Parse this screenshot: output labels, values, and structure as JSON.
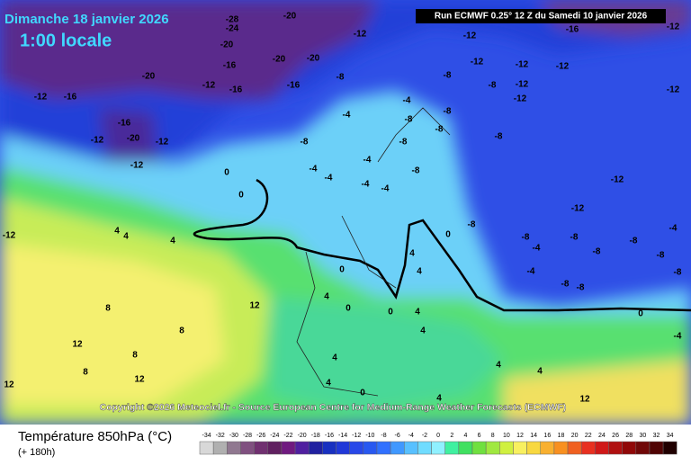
{
  "header": {
    "title": "Dimanche 18 janvier 2026",
    "time": "1:00 locale",
    "run": "Run ECMWF 0.25° 12 Z du Samedi 10 janvier 2026"
  },
  "map": {
    "labels": [
      -12,
      -12,
      -16,
      -12,
      -28,
      -24,
      -20,
      -16,
      -20,
      -20,
      -20,
      -16,
      -16,
      -12,
      -20,
      -12,
      -16,
      -16,
      -20,
      -12,
      -12,
      -12,
      -8,
      -12,
      -12,
      -12,
      -8,
      -8,
      -12,
      -12,
      -4,
      -8,
      -8,
      -4,
      -8,
      -4,
      -4,
      -4,
      -4,
      -4,
      -8,
      -8,
      -8,
      -8,
      -12,
      -12,
      -8,
      -8,
      -8,
      0,
      0,
      4,
      4,
      4,
      -12,
      0,
      4,
      4,
      0,
      -4,
      -4,
      -8,
      -8,
      -8,
      -8,
      -8,
      -4,
      -8,
      4,
      0,
      0,
      4,
      8,
      12,
      8,
      12,
      8,
      12,
      8,
      12,
      4,
      4,
      4,
      4,
      0,
      4,
      4,
      -4,
      0,
      12,
      -12
    ]
  },
  "copyright": "Copyright ©2026 Meteociel.fr - Source European Centre for Medium-Range Weather Forecasts (ECMWF)",
  "footer": {
    "title": "Température 850hPa (°C)",
    "lead": "(+ 180h)"
  },
  "legend": {
    "values": [
      -34,
      -32,
      -30,
      -28,
      -26,
      -24,
      -22,
      -20,
      -18,
      -16,
      -14,
      -12,
      -10,
      -8,
      -6,
      -4,
      -2,
      0,
      2,
      4,
      6,
      8,
      10,
      12,
      14,
      16,
      18,
      20,
      22,
      24,
      26,
      28,
      30,
      32,
      34
    ],
    "colors": [
      "#d8d8d8",
      "#b0b0b0",
      "#907890",
      "#805080",
      "#703070",
      "#602060",
      "#701a80",
      "#5020a0",
      "#2020a0",
      "#1830c0",
      "#2038d8",
      "#2848e8",
      "#2858f0",
      "#3070ff",
      "#4098ff",
      "#58c0ff",
      "#70dcff",
      "#90f0ff",
      "#40f0a0",
      "#40e060",
      "#70e040",
      "#a0e840",
      "#d0f040",
      "#f8f060",
      "#f8d840",
      "#f8b030",
      "#f89020",
      "#f06020",
      "#e83020",
      "#d01818",
      "#b01010",
      "#900808",
      "#700808",
      "#500404",
      "#200000"
    ]
  }
}
